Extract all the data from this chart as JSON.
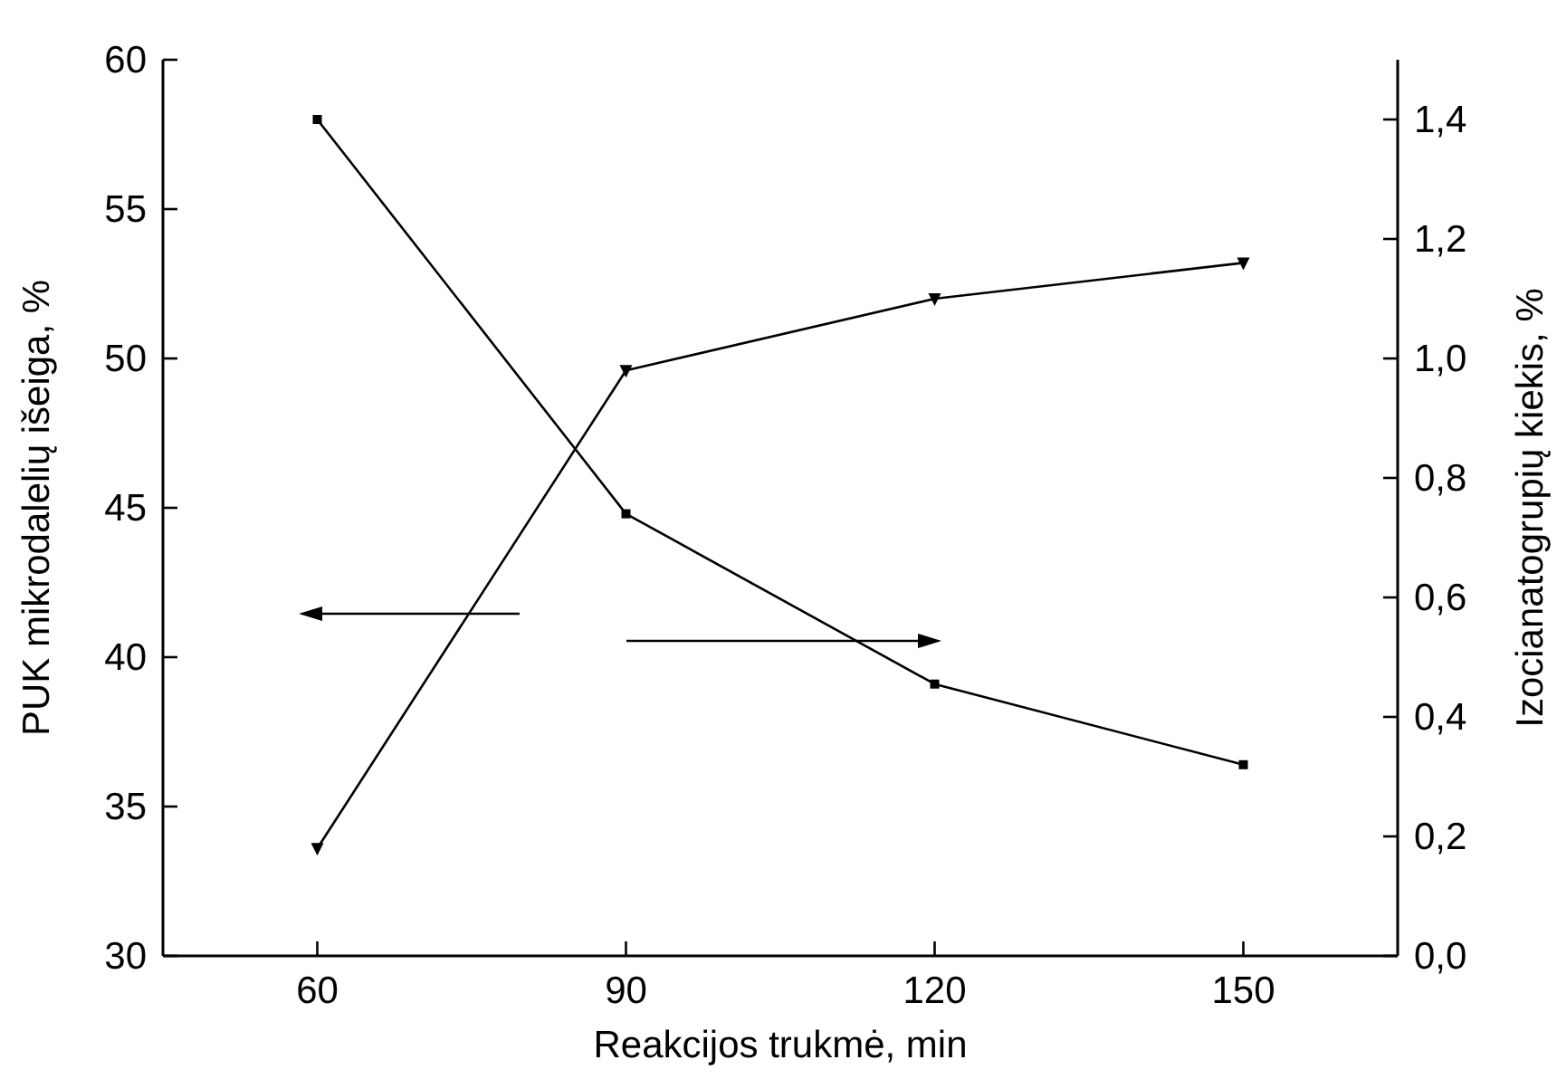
{
  "chart_data": {
    "type": "line",
    "xlabel": "Reakcijos trukmė, min",
    "ylabel": "PUK mikrodalelių išeiga, %",
    "y2label": "Izocianatogrupių kiekis, %",
    "x": [
      60,
      90,
      120,
      150
    ],
    "series": [
      {
        "color": "#000000",
        "marker": "square",
        "values": [
          58.0,
          44.8,
          39.1,
          36.4
        ]
      },
      {
        "color": "#000000",
        "marker": "triangle",
        "axis": "y2",
        "values": [
          0.18,
          0.98,
          1.1,
          1.16
        ]
      }
    ],
    "xlim": [
      45,
      165
    ],
    "xticks": [
      60,
      90,
      120,
      150
    ],
    "ylim": [
      30,
      60
    ],
    "yticks": [
      30,
      35,
      40,
      45,
      50,
      55,
      60
    ],
    "y2lim": [
      0,
      1.5
    ],
    "y2ticks": [
      {
        "value": 0,
        "label": "0,0"
      },
      {
        "value": 0.2,
        "label": "0,2"
      },
      {
        "value": 0.4,
        "label": "0,4"
      },
      {
        "value": 0.6,
        "label": "0,6"
      },
      {
        "value": 0.8,
        "label": "0,8"
      },
      {
        "value": 1,
        "label": "1,0"
      },
      {
        "value": 1.2,
        "label": "1,2"
      },
      {
        "value": 1.4,
        "label": "1,4"
      }
    ],
    "grid": false,
    "line_style": "solid"
  }
}
